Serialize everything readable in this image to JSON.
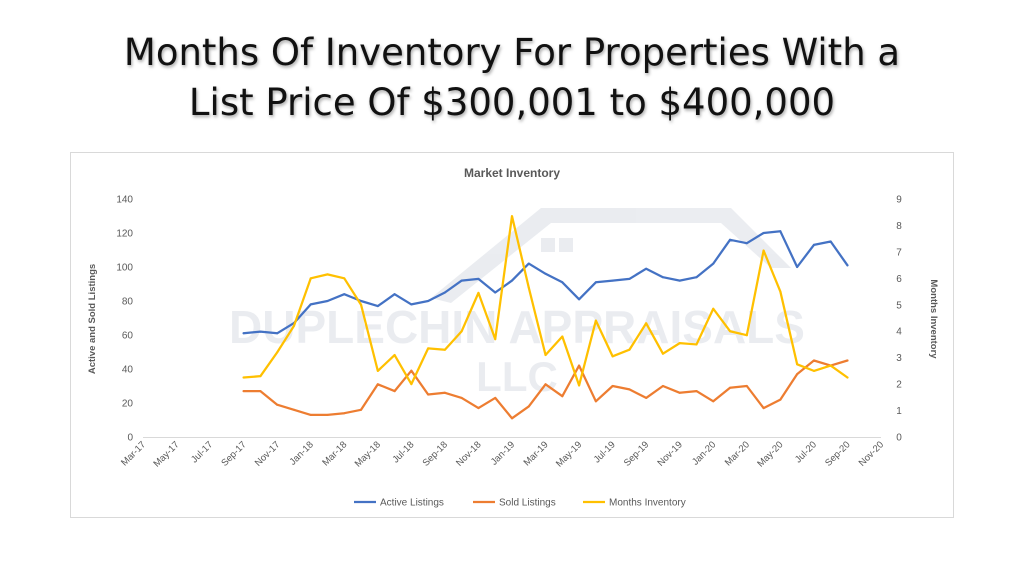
{
  "slide": {
    "title_line1": "Months Of Inventory For Properties With a",
    "title_line2": "List Price Of $300,001 to $400,000"
  },
  "watermark": {
    "line1": "DUPLECHIN APPRAISALS",
    "line2": "LLC"
  },
  "chart_data": {
    "type": "line",
    "title": "Market Inventory",
    "ylabel": "Active and Sold Listings",
    "y2label": "Months Inventory",
    "ylim": [
      0,
      140
    ],
    "y2lim": [
      0,
      9
    ],
    "yticks": [
      "0",
      "20",
      "40",
      "60",
      "80",
      "100",
      "120",
      "140"
    ],
    "y2ticks": [
      "0",
      "1",
      "2",
      "3",
      "4",
      "5",
      "6",
      "7",
      "8",
      "9"
    ],
    "xticks": [
      "Mar-17",
      "May-17",
      "Jul-17",
      "Sep-17",
      "Nov-17",
      "Jan-18",
      "Mar-18",
      "May-18",
      "Jul-18",
      "Sep-18",
      "Nov-18",
      "Jan-19",
      "Mar-19",
      "May-19",
      "Jul-19",
      "Sep-19",
      "Nov-19",
      "Jan-20",
      "Mar-20",
      "May-20",
      "Jul-20",
      "Sep-20",
      "Nov-20"
    ],
    "x": [
      "Sep-17",
      "Oct-17",
      "Nov-17",
      "Dec-17",
      "Jan-18",
      "Feb-18",
      "Mar-18",
      "Apr-18",
      "May-18",
      "Jun-18",
      "Jul-18",
      "Aug-18",
      "Sep-18",
      "Oct-18",
      "Nov-18",
      "Dec-18",
      "Jan-19",
      "Feb-19",
      "Mar-19",
      "Apr-19",
      "May-19",
      "Jun-19",
      "Jul-19",
      "Aug-19",
      "Sep-19",
      "Oct-19",
      "Nov-19",
      "Dec-19",
      "Jan-20",
      "Feb-20",
      "Mar-20",
      "Apr-20",
      "May-20",
      "Jun-20",
      "Jul-20",
      "Aug-20",
      "Sep-20"
    ],
    "legend_position": "bottom",
    "series": [
      {
        "name": "Active Listings",
        "color": "#4472c4",
        "axis": "left",
        "values": [
          61,
          62,
          61,
          67,
          78,
          80,
          84,
          80,
          77,
          84,
          78,
          80,
          85,
          92,
          93,
          85,
          92,
          102,
          96,
          91,
          81,
          91,
          92,
          93,
          99,
          94,
          92,
          94,
          102,
          116,
          114,
          120,
          121,
          100,
          113,
          115,
          101
        ]
      },
      {
        "name": "Sold Listings",
        "color": "#ed7d31",
        "axis": "left",
        "values": [
          27,
          27,
          19,
          16,
          13,
          13,
          14,
          16,
          31,
          27,
          39,
          25,
          26,
          23,
          17,
          23,
          11,
          18,
          31,
          24,
          42,
          21,
          30,
          28,
          23,
          30,
          26,
          27,
          21,
          29,
          30,
          17,
          22,
          37,
          45,
          42,
          45
        ]
      },
      {
        "name": "Months Inventory",
        "color": "#ffc000",
        "axis": "right",
        "values": [
          2.25,
          2.3,
          3.2,
          4.2,
          6.0,
          6.15,
          6.0,
          5.0,
          2.5,
          3.1,
          2.0,
          3.35,
          3.3,
          4.0,
          5.45,
          3.7,
          8.35,
          5.65,
          3.1,
          3.8,
          1.95,
          4.4,
          3.05,
          3.3,
          4.3,
          3.15,
          3.55,
          3.5,
          4.85,
          4.0,
          3.85,
          7.05,
          5.5,
          2.75,
          2.5,
          2.7,
          2.25
        ]
      }
    ]
  }
}
